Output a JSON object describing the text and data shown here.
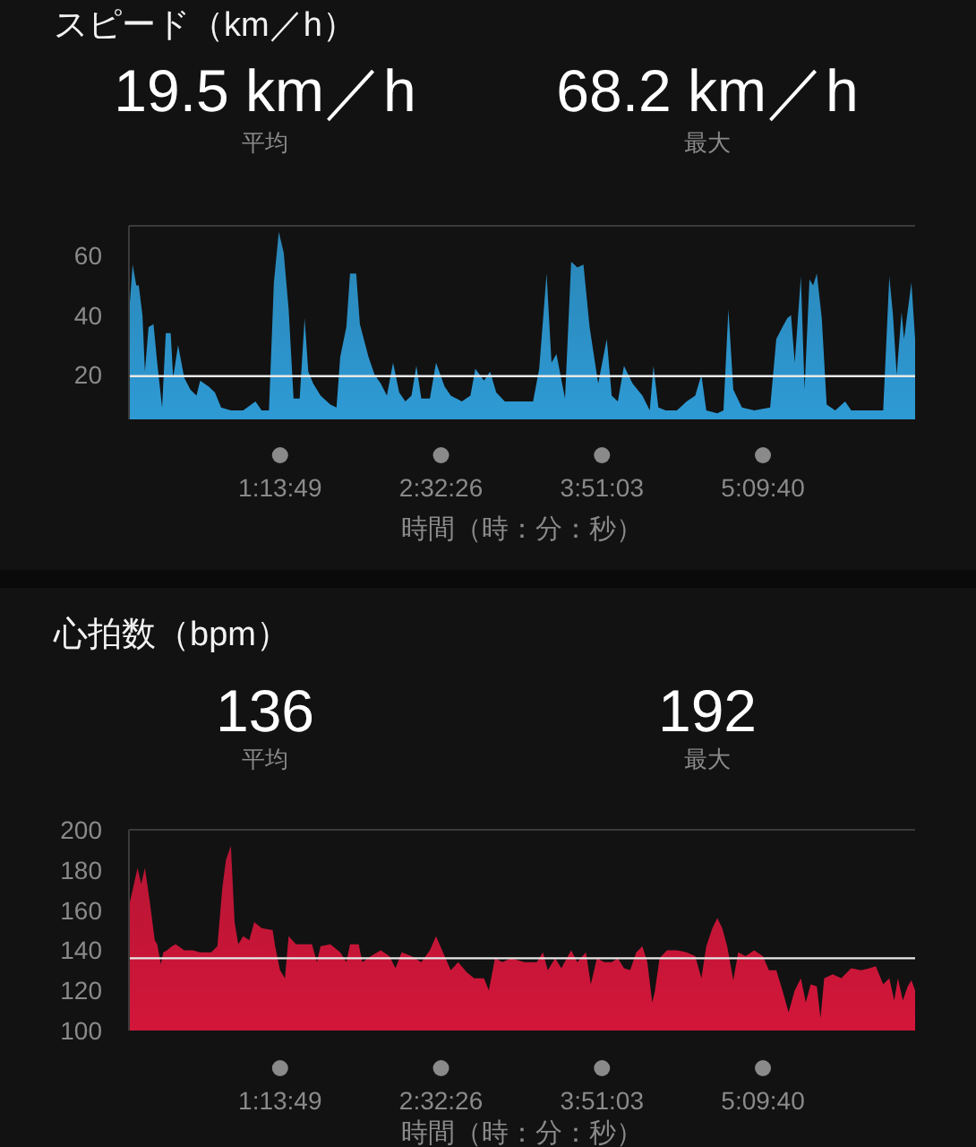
{
  "chart_data": [
    {
      "type": "area",
      "title": "スピード（km／h）",
      "annotations": [
        "19.5 km／h",
        "平均",
        "68.2 km／h",
        "最大"
      ],
      "xlabel": "時間（時：分：秒）",
      "xlim": [
        0,
        6.4
      ],
      "xticks": [
        {
          "value": 1.2303,
          "label": "1:13:49"
        },
        {
          "value": 2.5406,
          "label": "2:32:26"
        },
        {
          "value": 3.8508,
          "label": "3:51:03"
        },
        {
          "value": 5.1611,
          "label": "5:09:40"
        }
      ],
      "ylim": [
        5,
        70
      ],
      "yticks": [
        20,
        40,
        60
      ],
      "grid": false,
      "ref_lines": [
        {
          "axis": "y",
          "value": 19.5,
          "color": "#e8e8e8"
        }
      ],
      "series": [
        {
          "color": "#2e9ad4",
          "x": [
            0.0,
            0.03,
            0.06,
            0.08,
            0.11,
            0.13,
            0.16,
            0.2,
            0.23,
            0.27,
            0.3,
            0.34,
            0.36,
            0.4,
            0.45,
            0.5,
            0.55,
            0.58,
            0.65,
            0.7,
            0.75,
            0.83,
            0.93,
            1.03,
            1.08,
            1.14,
            1.18,
            1.22,
            1.26,
            1.3,
            1.34,
            1.39,
            1.43,
            1.46,
            1.5,
            1.56,
            1.64,
            1.69,
            1.72,
            1.77,
            1.8,
            1.85,
            1.88,
            1.95,
            2.0,
            2.05,
            2.1,
            2.15,
            2.2,
            2.25,
            2.3,
            2.34,
            2.38,
            2.45,
            2.5,
            2.57,
            2.62,
            2.71,
            2.78,
            2.82,
            2.89,
            2.94,
            2.99,
            3.06,
            3.16,
            3.29,
            3.34,
            3.4,
            3.44,
            3.48,
            3.55,
            3.6,
            3.65,
            3.7,
            3.75,
            3.82,
            3.89,
            3.93,
            3.98,
            4.03,
            4.1,
            4.18,
            4.24,
            4.27,
            4.31,
            4.37,
            4.46,
            4.54,
            4.61,
            4.66,
            4.7,
            4.79,
            4.84,
            4.88,
            4.92,
            4.99,
            5.09,
            5.22,
            5.27,
            5.32,
            5.36,
            5.39,
            5.42,
            5.47,
            5.5,
            5.54,
            5.57,
            5.6,
            5.64,
            5.68,
            5.75,
            5.83,
            5.88,
            6.01,
            6.14,
            6.19,
            6.22,
            6.25,
            6.29,
            6.31,
            6.37,
            6.4
          ],
          "values": [
            40,
            57,
            50,
            50,
            40,
            21,
            36,
            37,
            24,
            9,
            34,
            34,
            19,
            30,
            19,
            15,
            13,
            18,
            16,
            14,
            9,
            8,
            8,
            11,
            8,
            8,
            51,
            68,
            61,
            42,
            12,
            12,
            39,
            21,
            17,
            13,
            10,
            9,
            26,
            36,
            54,
            54,
            37,
            26,
            20,
            17,
            13,
            24,
            14,
            11,
            13,
            23,
            12,
            12,
            24,
            16,
            13,
            11,
            13,
            22,
            18,
            21,
            14,
            11,
            11,
            11,
            22,
            54,
            24,
            27,
            12,
            58,
            56,
            57,
            36,
            17,
            32,
            13,
            11,
            23,
            17,
            13,
            8,
            23,
            9,
            8,
            8,
            11,
            13,
            20,
            8,
            7,
            8,
            42,
            15,
            9,
            8,
            9,
            32,
            36,
            39,
            40,
            24,
            53,
            15,
            52,
            50,
            54,
            39,
            10,
            8,
            11,
            8,
            8,
            8,
            53,
            40,
            20,
            41,
            32,
            51,
            32
          ]
        }
      ]
    },
    {
      "type": "area",
      "title": "心拍数（bpm）",
      "annotations": [
        "136",
        "平均",
        "192",
        "最大"
      ],
      "xlabel": "時間（時：分：秒）",
      "xlim": [
        0,
        6.4
      ],
      "xticks": [
        {
          "value": 1.2303,
          "label": "1:13:49"
        },
        {
          "value": 2.5406,
          "label": "2:32:26"
        },
        {
          "value": 3.8508,
          "label": "3:51:03"
        },
        {
          "value": 5.1611,
          "label": "5:09:40"
        }
      ],
      "ylim": [
        100,
        200
      ],
      "yticks": [
        100,
        120,
        140,
        160,
        180,
        200
      ],
      "grid": false,
      "ref_lines": [
        {
          "axis": "y",
          "value": 136,
          "color": "#e8e8e8"
        }
      ],
      "series": [
        {
          "color": "#d3163a",
          "x": [
            0.0,
            0.03,
            0.07,
            0.1,
            0.13,
            0.17,
            0.21,
            0.23,
            0.26,
            0.28,
            0.31,
            0.35,
            0.38,
            0.45,
            0.52,
            0.58,
            0.67,
            0.72,
            0.76,
            0.79,
            0.83,
            0.86,
            0.89,
            0.93,
            0.98,
            1.02,
            1.08,
            1.17,
            1.19,
            1.23,
            1.27,
            1.3,
            1.36,
            1.49,
            1.53,
            1.56,
            1.64,
            1.72,
            1.77,
            1.8,
            1.87,
            1.9,
            1.97,
            2.05,
            2.12,
            2.17,
            2.22,
            2.3,
            2.38,
            2.45,
            2.5,
            2.57,
            2.62,
            2.68,
            2.75,
            2.81,
            2.89,
            2.93,
            2.98,
            3.04,
            3.11,
            3.22,
            3.32,
            3.37,
            3.41,
            3.47,
            3.52,
            3.6,
            3.65,
            3.72,
            3.76,
            3.81,
            3.87,
            3.93,
            3.98,
            4.03,
            4.08,
            4.13,
            4.18,
            4.22,
            4.26,
            4.28,
            4.32,
            4.38,
            4.46,
            4.54,
            4.61,
            4.66,
            4.7,
            4.75,
            4.79,
            4.83,
            4.87,
            4.92,
            4.96,
            5.02,
            5.09,
            5.16,
            5.21,
            5.27,
            5.32,
            5.37,
            5.42,
            5.47,
            5.51,
            5.55,
            5.6,
            5.63,
            5.66,
            5.73,
            5.8,
            5.83,
            5.88,
            5.96,
            6.03,
            6.08,
            6.14,
            6.19,
            6.23,
            6.26,
            6.3,
            6.34,
            6.37,
            6.4
          ],
          "values": [
            162,
            170,
            181,
            173,
            181,
            164,
            145,
            143,
            133,
            139,
            140,
            142,
            143,
            140,
            140,
            139,
            139,
            142,
            171,
            185,
            192,
            154,
            143,
            147,
            145,
            154,
            151,
            150,
            142,
            130,
            126,
            147,
            143,
            143,
            134,
            142,
            143,
            139,
            134,
            143,
            143,
            134,
            137,
            140,
            137,
            131,
            139,
            137,
            134,
            140,
            147,
            137,
            130,
            134,
            129,
            126,
            126,
            120,
            136,
            134,
            136,
            134,
            134,
            139,
            130,
            136,
            131,
            140,
            134,
            139,
            123,
            136,
            134,
            134,
            136,
            131,
            130,
            139,
            142,
            134,
            114,
            119,
            136,
            140,
            140,
            139,
            137,
            126,
            142,
            151,
            156,
            151,
            142,
            125,
            139,
            137,
            140,
            137,
            130,
            130,
            120,
            109,
            120,
            126,
            114,
            123,
            122,
            106,
            126,
            128,
            126,
            128,
            131,
            130,
            131,
            132,
            123,
            126,
            115,
            126,
            115,
            122,
            125,
            120
          ]
        }
      ]
    }
  ]
}
